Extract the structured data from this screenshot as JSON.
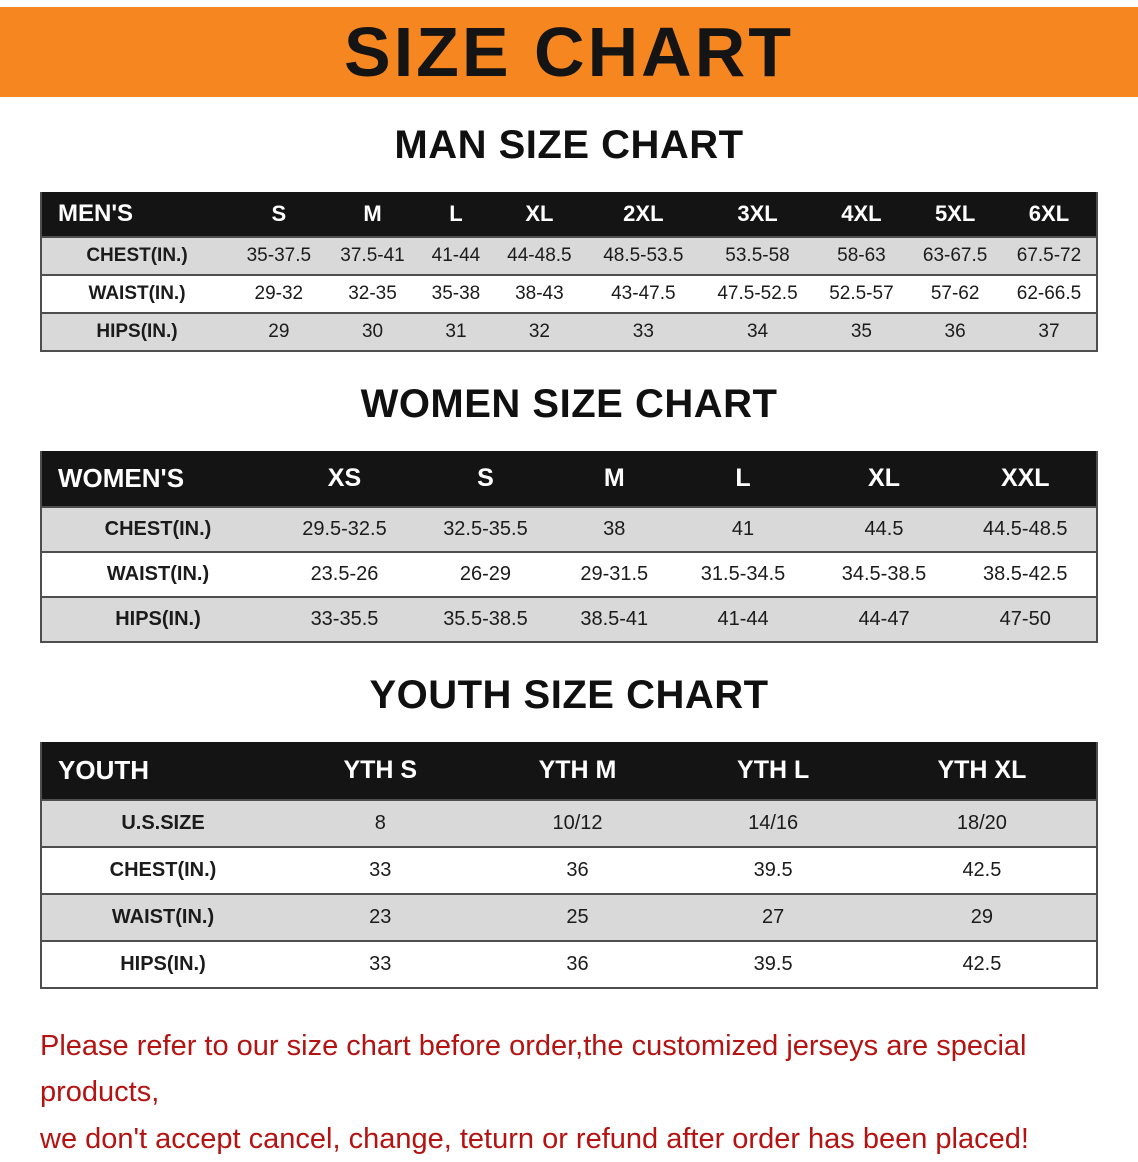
{
  "banner": {
    "title": "SIZE CHART",
    "bg_color": "#f6861f"
  },
  "sections": {
    "men": {
      "heading": "MAN SIZE CHART",
      "table": {
        "header": [
          "MEN'S",
          "S",
          "M",
          "L",
          "XL",
          "2XL",
          "3XL",
          "4XL",
          "5XL",
          "6XL"
        ],
        "rows": [
          [
            "CHEST(IN.)",
            "35-37.5",
            "37.5-41",
            "41-44",
            "44-48.5",
            "48.5-53.5",
            "53.5-58",
            "58-63",
            "63-67.5",
            "67.5-72"
          ],
          [
            "WAIST(IN.)",
            "29-32",
            "32-35",
            "35-38",
            "38-43",
            "43-47.5",
            "47.5-52.5",
            "52.5-57",
            "57-62",
            "62-66.5"
          ],
          [
            "HIPS(IN.)",
            "29",
            "30",
            "31",
            "32",
            "33",
            "34",
            "35",
            "36",
            "37"
          ]
        ]
      }
    },
    "women": {
      "heading": "WOMEN SIZE CHART",
      "table": {
        "header": [
          "WOMEN'S",
          "XS",
          "S",
          "M",
          "L",
          "XL",
          "XXL"
        ],
        "rows": [
          [
            "CHEST(IN.)",
            "29.5-32.5",
            "32.5-35.5",
            "38",
            "41",
            "44.5",
            "44.5-48.5"
          ],
          [
            "WAIST(IN.)",
            "23.5-26",
            "26-29",
            "29-31.5",
            "31.5-34.5",
            "34.5-38.5",
            "38.5-42.5"
          ],
          [
            "HIPS(IN.)",
            "33-35.5",
            "35.5-38.5",
            "38.5-41",
            "41-44",
            "44-47",
            "47-50"
          ]
        ]
      }
    },
    "youth": {
      "heading": "YOUTH SIZE CHART",
      "table": {
        "header": [
          "YOUTH",
          "YTH S",
          "YTH M",
          "YTH L",
          "YTH XL"
        ],
        "rows": [
          [
            "U.S.SIZE",
            "8",
            "10/12",
            "14/16",
            "18/20"
          ],
          [
            "CHEST(IN.)",
            "33",
            "36",
            "39.5",
            "42.5"
          ],
          [
            "WAIST(IN.)",
            "23",
            "25",
            "27",
            "29"
          ],
          [
            "HIPS(IN.)",
            "33",
            "36",
            "39.5",
            "42.5"
          ]
        ]
      }
    }
  },
  "disclaimer": {
    "line1": "Please refer to our size chart before order,the customized jerseys are special products,",
    "line2": "we don't accept cancel, change, teturn or refund after order has been placed!",
    "color": "#b51212"
  }
}
